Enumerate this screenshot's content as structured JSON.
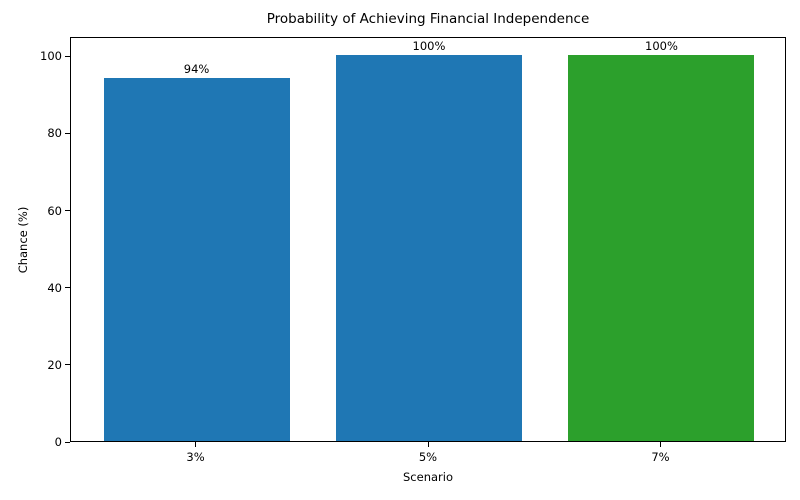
{
  "chart_data": {
    "type": "bar",
    "title": "Probability of Achieving Financial Independence",
    "xlabel": "Scenario",
    "ylabel": "Chance (%)",
    "categories": [
      "3%",
      "5%",
      "7%"
    ],
    "values": [
      94,
      100,
      100
    ],
    "bar_labels": [
      "94%",
      "100%",
      "100%"
    ],
    "bar_colors": [
      "#1f77b4",
      "#1f77b4",
      "#2ca02c"
    ],
    "yticks": [
      0,
      20,
      40,
      60,
      80,
      100
    ],
    "ylim": [
      0,
      105
    ],
    "bar_width_ratio": 0.8,
    "grid": false,
    "legend_position": "none",
    "background_color": "#ffffff",
    "axis_color": "#000000"
  }
}
